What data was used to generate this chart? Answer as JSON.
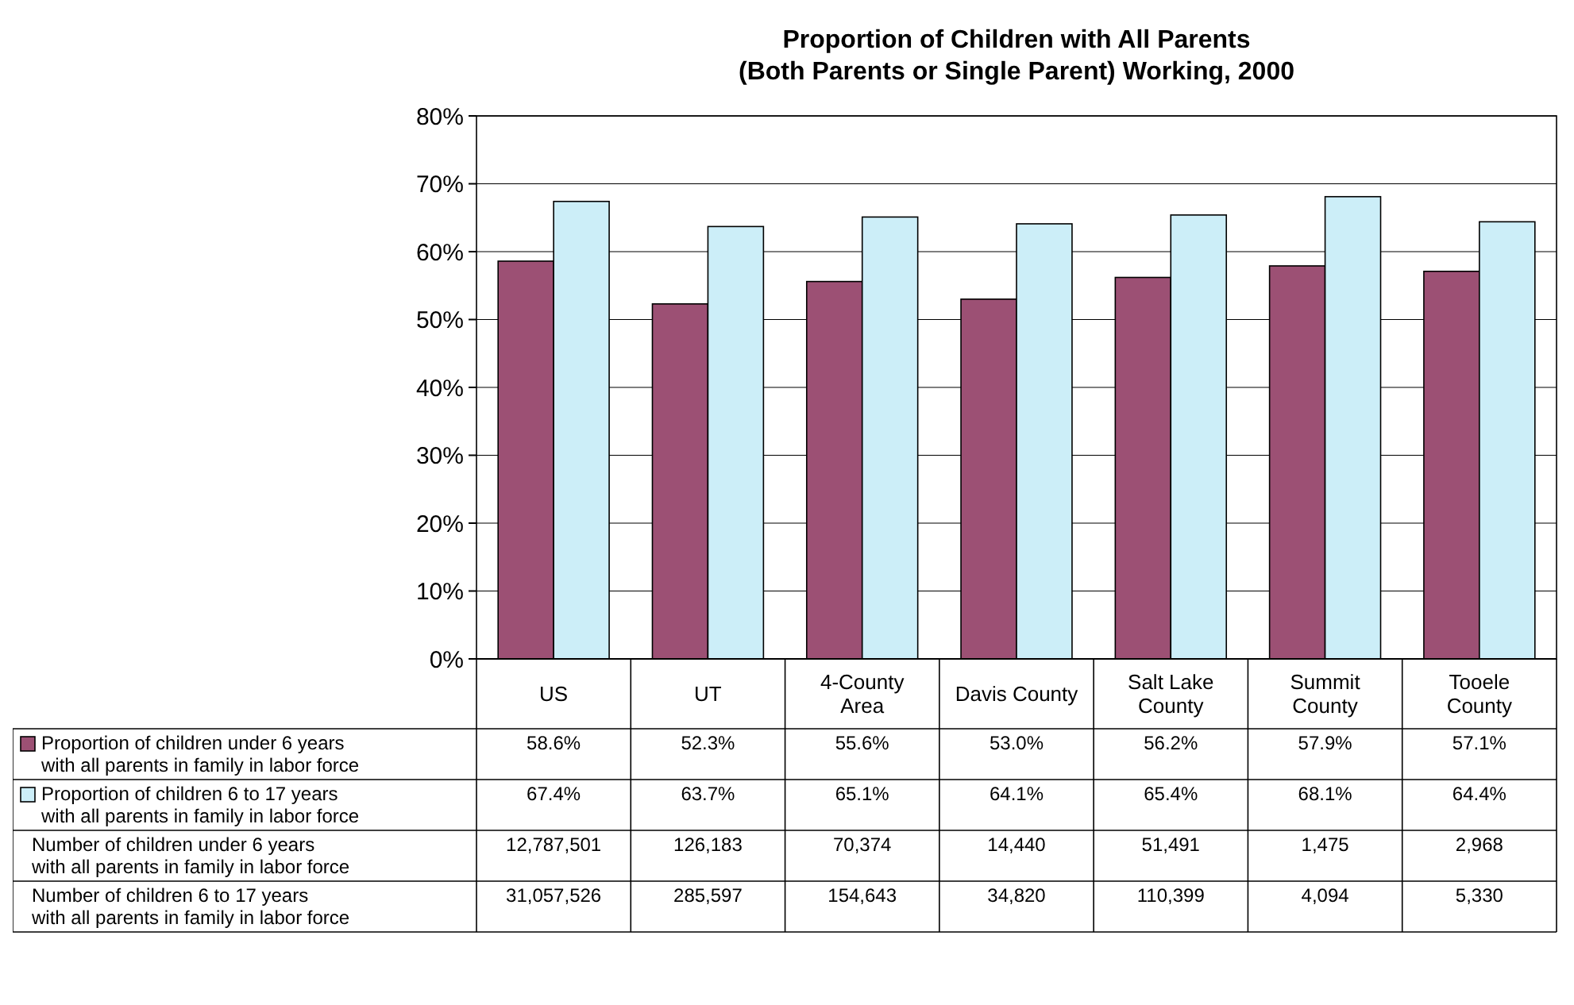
{
  "chart_data": {
    "type": "bar",
    "title": "Proportion of Children with All Parents\n(Both Parents or Single Parent) Working, 2000",
    "categories": [
      "US",
      "UT",
      "4-County Area",
      "Davis County",
      "Salt Lake County",
      "Summit County",
      "Tooele County"
    ],
    "series": [
      {
        "name": "Proportion of children under 6 years with all parents in family in labor force",
        "color": "#9c5074",
        "values": [
          58.6,
          52.3,
          55.6,
          53.0,
          56.2,
          57.9,
          57.1
        ],
        "value_labels": [
          "58.6%",
          "52.3%",
          "55.6%",
          "53.0%",
          "56.2%",
          "57.9%",
          "57.1%"
        ]
      },
      {
        "name": "Proportion of children 6 to 17 years with all parents in family in labor force",
        "color": "#cceef8",
        "values": [
          67.4,
          63.7,
          65.1,
          64.1,
          65.4,
          68.1,
          64.4
        ],
        "value_labels": [
          "67.4%",
          "63.7%",
          "65.1%",
          "64.1%",
          "65.4%",
          "68.1%",
          "64.4%"
        ]
      }
    ],
    "annotations": [
      "Number of children under 6 years with all parents in family in labor force",
      "12,787,501",
      "126,183",
      "70,374",
      "14,440",
      "51,491",
      "1,475",
      "2,968",
      "Number of children 6 to 17 years with all parents in family in labor force",
      "31,057,526",
      "285,597",
      "154,643",
      "34,820",
      "110,399",
      "4,094",
      "5,330"
    ],
    "ylim": [
      0,
      80
    ],
    "yticks": [
      {
        "value": 0,
        "label": "0%"
      },
      {
        "value": 10,
        "label": "10%"
      },
      {
        "value": 20,
        "label": "20%"
      },
      {
        "value": 30,
        "label": "30%"
      },
      {
        "value": 40,
        "label": "40%"
      },
      {
        "value": 50,
        "label": "50%"
      },
      {
        "value": 60,
        "label": "60%"
      },
      {
        "value": 70,
        "label": "70%"
      },
      {
        "value": 80,
        "label": "80%"
      }
    ],
    "grid": "y",
    "legend": "bottom left"
  }
}
